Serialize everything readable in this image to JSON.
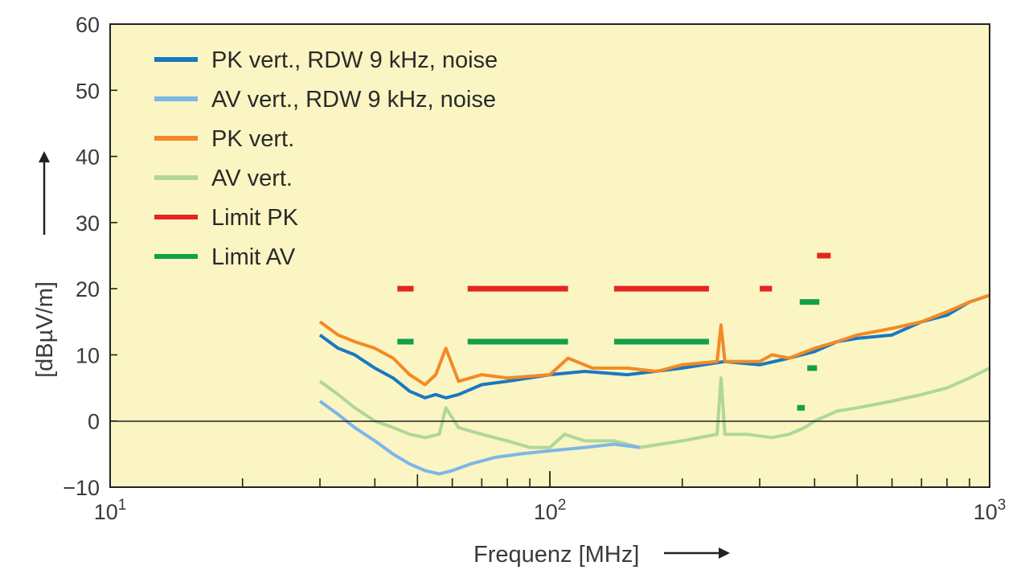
{
  "chart_data": {
    "type": "line",
    "title": "",
    "xlabel": "Frequenz [MHz]",
    "ylabel": "[dBµV/m]",
    "x_scale": "log",
    "xlim": [
      10,
      1000
    ],
    "ylim": [
      -10,
      60
    ],
    "x_ticks": [
      {
        "value": 10,
        "base": "10",
        "exp": "1"
      },
      {
        "value": 100,
        "base": "10",
        "exp": "2"
      },
      {
        "value": 1000,
        "base": "10",
        "exp": "3"
      }
    ],
    "y_ticks": [
      {
        "value": -10,
        "label": "−10"
      },
      {
        "value": 0,
        "label": "0"
      },
      {
        "value": 10,
        "label": "10"
      },
      {
        "value": 20,
        "label": "20"
      },
      {
        "value": 30,
        "label": "30"
      },
      {
        "value": 40,
        "label": "40"
      },
      {
        "value": 50,
        "label": "50"
      },
      {
        "value": 60,
        "label": "60"
      }
    ],
    "grid": false,
    "zero_line": true,
    "background_color": "#fbf5c3",
    "legend_position": "top-left",
    "series": [
      {
        "name": "PK vert., RDW 9 kHz, noise",
        "color": "#1a78c2",
        "x": [
          30,
          33,
          36,
          40,
          44,
          48,
          52,
          55,
          58,
          62,
          70,
          80,
          100,
          120,
          150,
          200,
          250,
          300,
          350,
          400,
          450,
          500,
          600,
          700,
          800,
          900,
          1000
        ],
        "y": [
          13,
          11,
          10,
          8,
          6.5,
          4.5,
          3.5,
          4,
          3.5,
          4,
          5.5,
          6,
          7,
          7.5,
          7,
          8,
          9,
          8.5,
          9.5,
          10.5,
          12,
          12.5,
          13,
          15,
          16,
          18,
          19
        ]
      },
      {
        "name": "AV vert., RDW 9 kHz, noise",
        "color": "#7db6e8",
        "x": [
          30,
          33,
          36,
          40,
          44,
          48,
          52,
          56,
          60,
          66,
          75,
          85,
          100,
          120,
          140,
          160
        ],
        "y": [
          3,
          1,
          -1,
          -3,
          -5,
          -6.5,
          -7.5,
          -8,
          -7.5,
          -6.5,
          -5.5,
          -5,
          -4.5,
          -4,
          -3.5,
          -4
        ]
      },
      {
        "name": "PK vert.",
        "color": "#f28a25",
        "x": [
          30,
          33,
          36,
          40,
          44,
          48,
          52,
          55,
          58,
          62,
          70,
          80,
          100,
          110,
          125,
          150,
          175,
          200,
          240,
          245,
          250,
          300,
          320,
          350,
          400,
          450,
          500,
          600,
          700,
          800,
          900,
          1000
        ],
        "y": [
          15,
          13,
          12,
          11,
          9.5,
          7,
          5.5,
          7,
          11,
          6,
          7,
          6.5,
          7,
          9.5,
          8,
          8,
          7.5,
          8.5,
          9,
          14.5,
          9,
          9,
          10,
          9.5,
          11,
          12,
          13,
          14,
          15,
          16.5,
          18,
          19
        ]
      },
      {
        "name": "AV vert.",
        "color": "#b0d69b",
        "x": [
          30,
          33,
          36,
          40,
          44,
          48,
          52,
          56,
          58,
          62,
          70,
          80,
          90,
          100,
          108,
          120,
          140,
          160,
          200,
          240,
          245,
          250,
          280,
          320,
          350,
          380,
          400,
          450,
          500,
          600,
          700,
          800,
          900,
          1000
        ],
        "y": [
          6,
          4,
          2,
          0,
          -1,
          -2,
          -2.5,
          -2,
          2,
          -1,
          -2,
          -3,
          -4,
          -4,
          -2,
          -3,
          -3,
          -4,
          -3,
          -2,
          6.5,
          -2,
          -2,
          -2.5,
          -2,
          -1,
          0,
          1.5,
          2,
          3,
          4,
          5,
          6.5,
          8
        ]
      }
    ],
    "limit_segments": [
      {
        "name": "Limit PK",
        "color": "#e52620",
        "segments": [
          {
            "x0": 45,
            "x1": 49,
            "y": 20
          },
          {
            "x0": 65,
            "x1": 110,
            "y": 20
          },
          {
            "x0": 140,
            "x1": 230,
            "y": 20
          },
          {
            "x0": 300,
            "x1": 320,
            "y": 20
          },
          {
            "x0": 405,
            "x1": 435,
            "y": 25
          }
        ]
      },
      {
        "name": "Limit AV",
        "color": "#12a049",
        "segments": [
          {
            "x0": 45,
            "x1": 49,
            "y": 12
          },
          {
            "x0": 65,
            "x1": 110,
            "y": 12
          },
          {
            "x0": 140,
            "x1": 230,
            "y": 12
          },
          {
            "x0": 370,
            "x1": 410,
            "y": 18
          },
          {
            "x0": 385,
            "x1": 405,
            "y": 8
          },
          {
            "x0": 365,
            "x1": 380,
            "y": 2
          }
        ]
      }
    ]
  }
}
